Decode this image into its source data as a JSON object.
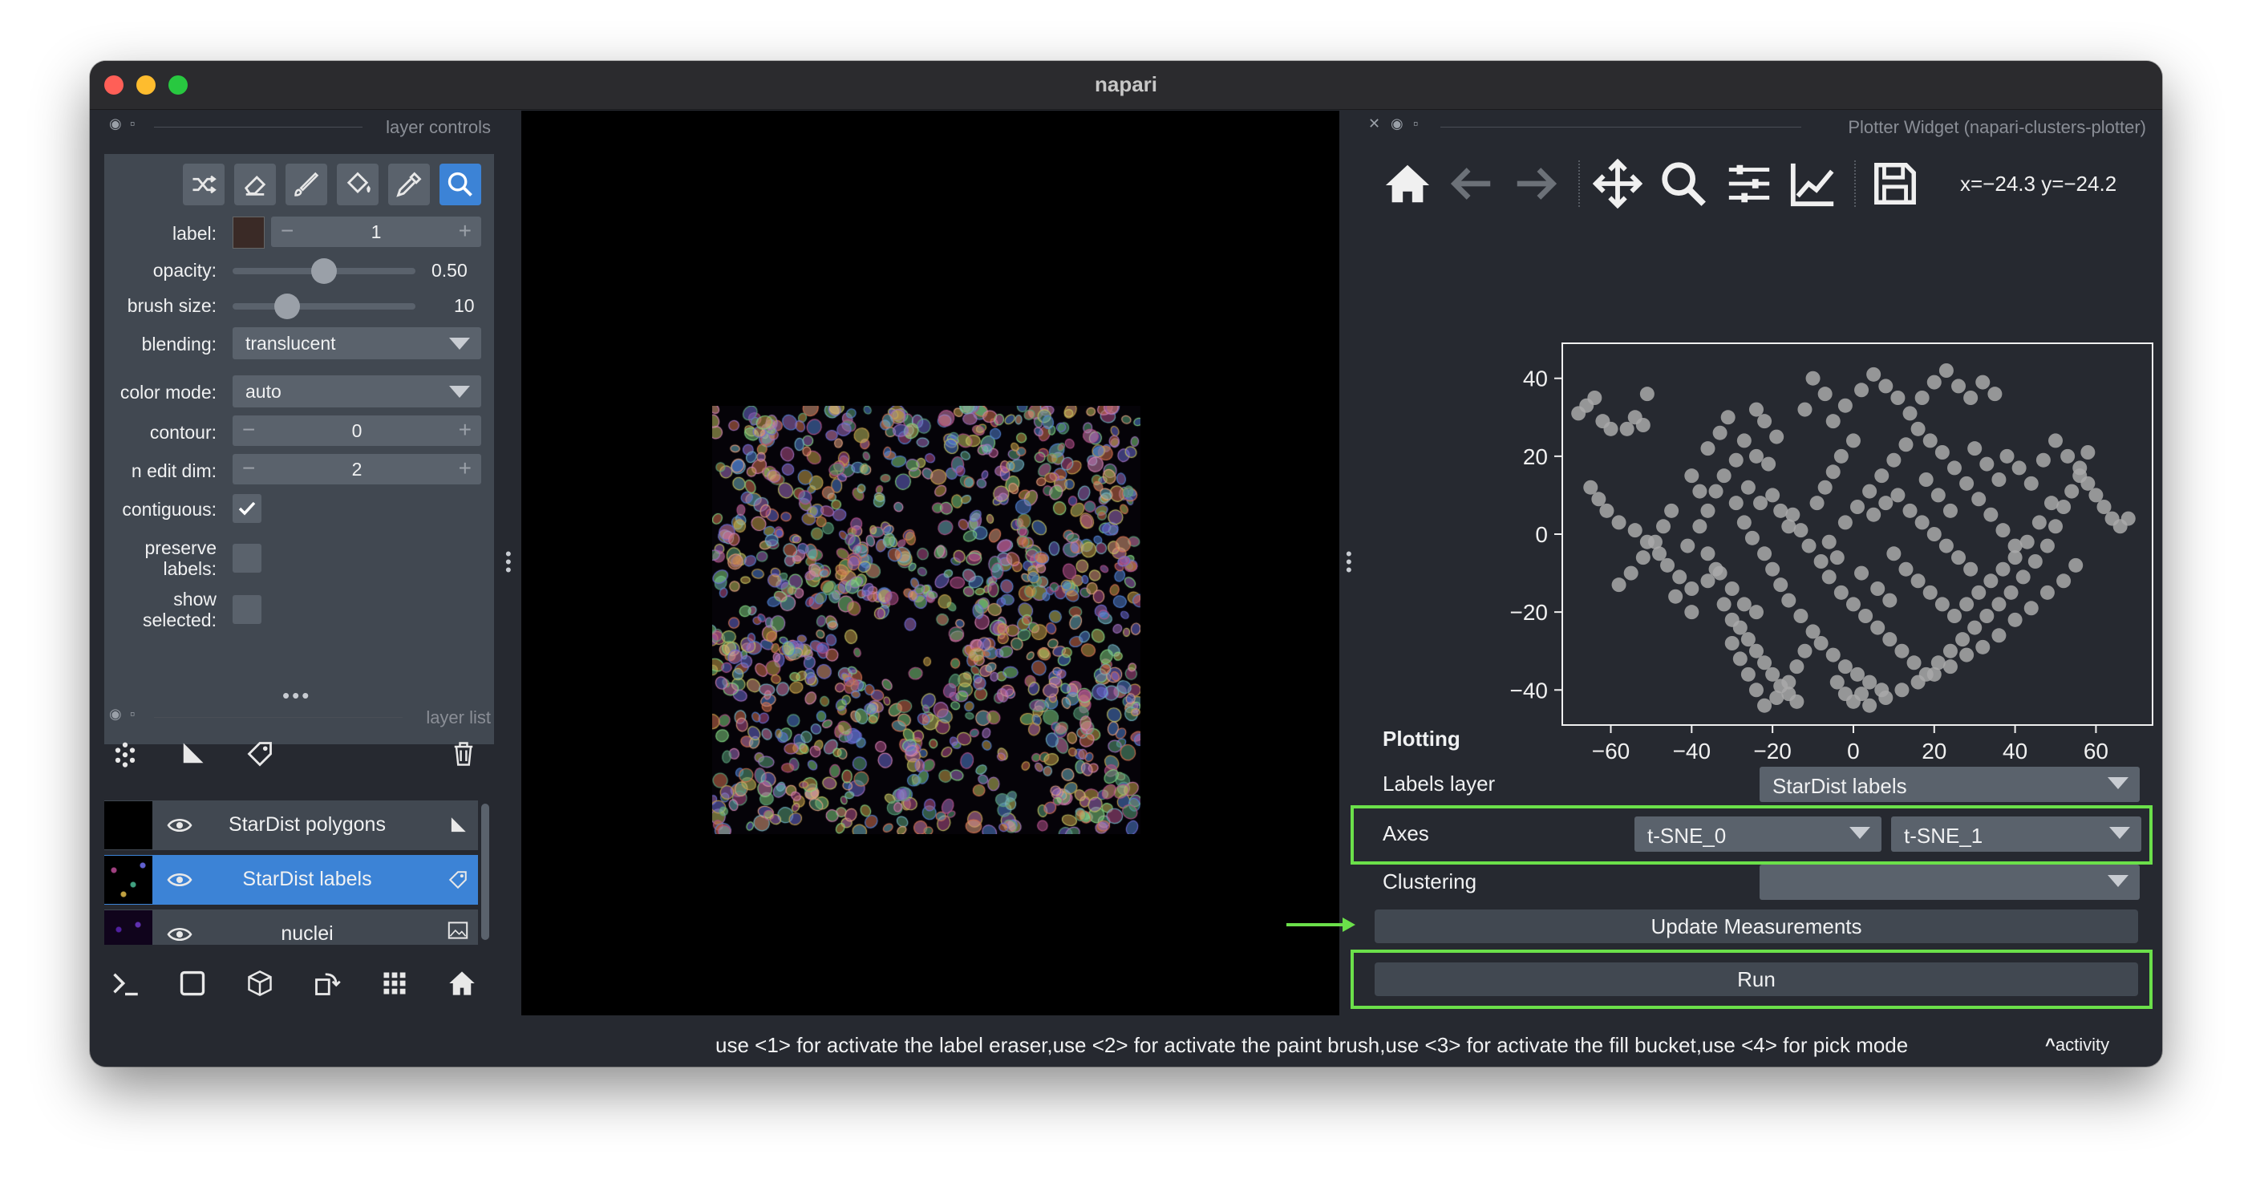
{
  "window": {
    "title": "napari"
  },
  "layer_controls": {
    "title": "layer controls",
    "tools": [
      {
        "name": "shuffle-colors-icon"
      },
      {
        "name": "eraser-icon"
      },
      {
        "name": "paint-brush-icon"
      },
      {
        "name": "fill-bucket-icon"
      },
      {
        "name": "color-picker-icon"
      },
      {
        "name": "zoom-pan-icon",
        "active": true
      }
    ],
    "label": {
      "label": "label:",
      "value": "1",
      "swatch_color": "#3a2a26"
    },
    "opacity": {
      "label": "opacity:",
      "value": "0.50",
      "fraction": 0.5
    },
    "brush_size": {
      "label": "brush size:",
      "value": "10",
      "fraction": 0.3
    },
    "blending": {
      "label": "blending:",
      "value": "translucent"
    },
    "color_mode": {
      "label": "color mode:",
      "value": "auto"
    },
    "contour": {
      "label": "contour:",
      "value": "0"
    },
    "n_edit_dim": {
      "label": "n edit dim:",
      "value": "2"
    },
    "contiguous": {
      "label": "contiguous:",
      "checked": true
    },
    "preserve_labels": {
      "label_line1": "preserve",
      "label_line2": "labels:",
      "checked": false
    },
    "show_selected": {
      "label_line1": "show",
      "label_line2": "selected:",
      "checked": false
    }
  },
  "layer_list": {
    "title": "layer list",
    "layers": [
      {
        "name": "StarDist polygons",
        "type_icon": "shapes-icon",
        "selected": false
      },
      {
        "name": "StarDist labels",
        "type_icon": "labels-icon",
        "selected": true
      },
      {
        "name": "nuclei",
        "type_icon": "image-icon",
        "selected": false
      }
    ]
  },
  "bottom_toolbar": [
    "console-icon",
    "2d-3d-toggle-icon",
    "3d-cube-icon",
    "roll-dimensions-icon",
    "grid-icon",
    "home-icon"
  ],
  "plotter_widget": {
    "title": "Plotter Widget (napari-clusters-plotter)",
    "coords": "x=−24.3 y=−24.2",
    "toolbar": [
      "home-icon",
      "back-arrow-icon",
      "forward-arrow-icon",
      "pan-icon",
      "zoom-icon",
      "subplots-config-icon",
      "axes-edit-icon",
      "save-icon"
    ],
    "plotting_heading": "Plotting",
    "labels_layer": {
      "label": "Labels layer",
      "value": "StarDist labels"
    },
    "axes": {
      "label": "Axes",
      "x_value": "t-SNE_0",
      "y_value": "t-SNE_1"
    },
    "clustering": {
      "label": "Clustering",
      "value": ""
    },
    "update_button": "Update Measurements",
    "run_button": "Run",
    "highlight_color": "#6be04a"
  },
  "status_bar": {
    "message": "use <1> for activate the label eraser,use <2> for activate the paint brush,use <3> for activate the fill bucket,use <4> for pick mode",
    "activity": "activity"
  },
  "chart_data": {
    "type": "scatter",
    "title": "",
    "xlabel": "",
    "ylabel": "",
    "xlim": [
      -72,
      74
    ],
    "ylim": [
      -49,
      49
    ],
    "xticks": [
      "−60",
      "−40",
      "−20",
      "0",
      "20",
      "40",
      "60"
    ],
    "yticks": [
      "40",
      "20",
      "0",
      "−20",
      "−40"
    ],
    "marker_color": "#a9a9a9",
    "series": [
      {
        "points": [
          [
            -66,
            33
          ],
          [
            -68,
            31
          ],
          [
            -64,
            35
          ],
          [
            -62,
            29
          ],
          [
            -60,
            27
          ],
          [
            -56,
            27
          ],
          [
            -54,
            30
          ],
          [
            -52,
            28
          ],
          [
            -51,
            36
          ],
          [
            -65,
            12
          ],
          [
            -63,
            9
          ],
          [
            -61,
            6
          ],
          [
            -58,
            3
          ],
          [
            -54,
            1
          ],
          [
            -51,
            -2
          ],
          [
            -48,
            -5
          ],
          [
            -46,
            -8
          ],
          [
            -43,
            -11
          ],
          [
            -40,
            -14
          ],
          [
            -36,
            -12
          ],
          [
            -33,
            -10
          ],
          [
            -30,
            -14
          ],
          [
            -27,
            -18
          ],
          [
            -24,
            -20
          ],
          [
            -41,
            -3
          ],
          [
            -38,
            2
          ],
          [
            -36,
            6
          ],
          [
            -34,
            11
          ],
          [
            -32,
            15
          ],
          [
            -29,
            19
          ],
          [
            -27,
            24
          ],
          [
            -24,
            20
          ],
          [
            -21,
            18
          ],
          [
            -19,
            25
          ],
          [
            -24,
            32
          ],
          [
            -22,
            29
          ],
          [
            -29,
            8
          ],
          [
            -27,
            3
          ],
          [
            -25,
            -1
          ],
          [
            -22,
            -5
          ],
          [
            -20,
            -9
          ],
          [
            -18,
            -13
          ],
          [
            -16,
            -17
          ],
          [
            -13,
            -21
          ],
          [
            -10,
            -25
          ],
          [
            -8,
            -28
          ],
          [
            -5,
            -31
          ],
          [
            -2,
            -34
          ],
          [
            1,
            -36
          ],
          [
            4,
            -38
          ],
          [
            7,
            -40
          ],
          [
            -30,
            -28
          ],
          [
            -28,
            -32
          ],
          [
            -26,
            -36
          ],
          [
            -24,
            -40
          ],
          [
            -22,
            -44
          ],
          [
            -19,
            -42
          ],
          [
            -16,
            -38
          ],
          [
            -14,
            -34
          ],
          [
            -12,
            -30
          ],
          [
            -9,
            8
          ],
          [
            -7,
            12
          ],
          [
            -5,
            16
          ],
          [
            -3,
            20
          ],
          [
            0,
            24
          ],
          [
            -5,
            29
          ],
          [
            -2,
            33
          ],
          [
            2,
            37
          ],
          [
            5,
            41
          ],
          [
            8,
            38
          ],
          [
            11,
            35
          ],
          [
            14,
            31
          ],
          [
            17,
            35
          ],
          [
            20,
            39
          ],
          [
            23,
            42
          ],
          [
            26,
            38
          ],
          [
            29,
            35
          ],
          [
            32,
            39
          ],
          [
            35,
            36
          ],
          [
            -15,
            5
          ],
          [
            -13,
            1
          ],
          [
            -11,
            -3
          ],
          [
            -8,
            -7
          ],
          [
            -6,
            -11
          ],
          [
            -3,
            -15
          ],
          [
            0,
            -18
          ],
          [
            3,
            -21
          ],
          [
            6,
            -24
          ],
          [
            9,
            -27
          ],
          [
            12,
            -30
          ],
          [
            15,
            -33
          ],
          [
            18,
            -36
          ],
          [
            21,
            -33
          ],
          [
            24,
            -30
          ],
          [
            27,
            -27
          ],
          [
            30,
            -24
          ],
          [
            33,
            -21
          ],
          [
            36,
            -18
          ],
          [
            39,
            -15
          ],
          [
            42,
            -11
          ],
          [
            45,
            -7
          ],
          [
            48,
            -3
          ],
          [
            50,
            2
          ],
          [
            52,
            7
          ],
          [
            54,
            11
          ],
          [
            56,
            15
          ],
          [
            58,
            13
          ],
          [
            60,
            10
          ],
          [
            62,
            7
          ],
          [
            64,
            4
          ],
          [
            66,
            2
          ],
          [
            68,
            4
          ],
          [
            5,
            5
          ],
          [
            8,
            8
          ],
          [
            11,
            10
          ],
          [
            14,
            6
          ],
          [
            17,
            3
          ],
          [
            20,
            0
          ],
          [
            23,
            -3
          ],
          [
            26,
            -6
          ],
          [
            29,
            -9
          ],
          [
            10,
            -5
          ],
          [
            13,
            -9
          ],
          [
            16,
            -12
          ],
          [
            19,
            -15
          ],
          [
            22,
            -18
          ],
          [
            25,
            -21
          ],
          [
            28,
            -18
          ],
          [
            31,
            -15
          ],
          [
            34,
            -12
          ],
          [
            37,
            -9
          ],
          [
            40,
            -6
          ],
          [
            43,
            -2
          ],
          [
            46,
            3
          ],
          [
            49,
            8
          ],
          [
            -2,
            3
          ],
          [
            1,
            7
          ],
          [
            4,
            11
          ],
          [
            7,
            15
          ],
          [
            10,
            19
          ],
          [
            13,
            23
          ],
          [
            16,
            27
          ],
          [
            19,
            24
          ],
          [
            22,
            21
          ],
          [
            25,
            17
          ],
          [
            28,
            13
          ],
          [
            31,
            9
          ],
          [
            34,
            5
          ],
          [
            37,
            1
          ],
          [
            40,
            -3
          ],
          [
            -40,
            15
          ],
          [
            -38,
            11
          ],
          [
            -36,
            -5
          ],
          [
            -34,
            -9
          ],
          [
            -32,
            -18
          ],
          [
            -30,
            -22
          ],
          [
            -28,
            -24
          ],
          [
            -26,
            -27
          ],
          [
            -24,
            -30
          ],
          [
            -22,
            -33
          ],
          [
            -20,
            -36
          ],
          [
            -18,
            -39
          ],
          [
            -16,
            -41
          ],
          [
            -14,
            -43
          ],
          [
            -4,
            -38
          ],
          [
            -2,
            -41
          ],
          [
            0,
            -43
          ],
          [
            2,
            -41
          ],
          [
            4,
            -44
          ],
          [
            8,
            -42
          ],
          [
            12,
            -40
          ],
          [
            16,
            -38
          ],
          [
            20,
            -36
          ],
          [
            24,
            -34
          ],
          [
            28,
            -31
          ],
          [
            32,
            -29
          ],
          [
            36,
            -26
          ],
          [
            40,
            -22
          ],
          [
            44,
            -19
          ],
          [
            48,
            -15
          ],
          [
            52,
            -12
          ],
          [
            55,
            -8
          ],
          [
            -45,
            6
          ],
          [
            -47,
            2
          ],
          [
            -49,
            -2
          ],
          [
            -52,
            -6
          ],
          [
            -55,
            -10
          ],
          [
            -58,
            -13
          ],
          [
            -36,
            22
          ],
          [
            -33,
            26
          ],
          [
            -31,
            30
          ],
          [
            -20,
            10
          ],
          [
            -18,
            6
          ],
          [
            -16,
            2
          ],
          [
            -6,
            -2
          ],
          [
            -4,
            -6
          ],
          [
            2,
            -10
          ],
          [
            6,
            -14
          ],
          [
            9,
            -17
          ],
          [
            38,
            20
          ],
          [
            41,
            17
          ],
          [
            44,
            13
          ],
          [
            47,
            19
          ],
          [
            50,
            24
          ],
          [
            53,
            20
          ],
          [
            56,
            17
          ],
          [
            58,
            21
          ],
          [
            -10,
            40
          ],
          [
            -7,
            36
          ],
          [
            -12,
            32
          ],
          [
            30,
            22
          ],
          [
            33,
            18
          ],
          [
            36,
            14
          ],
          [
            18,
            14
          ],
          [
            21,
            10
          ],
          [
            24,
            6
          ],
          [
            -26,
            12
          ],
          [
            -23,
            8
          ],
          [
            -44,
            -16
          ],
          [
            -40,
            -20
          ]
        ]
      }
    ]
  }
}
